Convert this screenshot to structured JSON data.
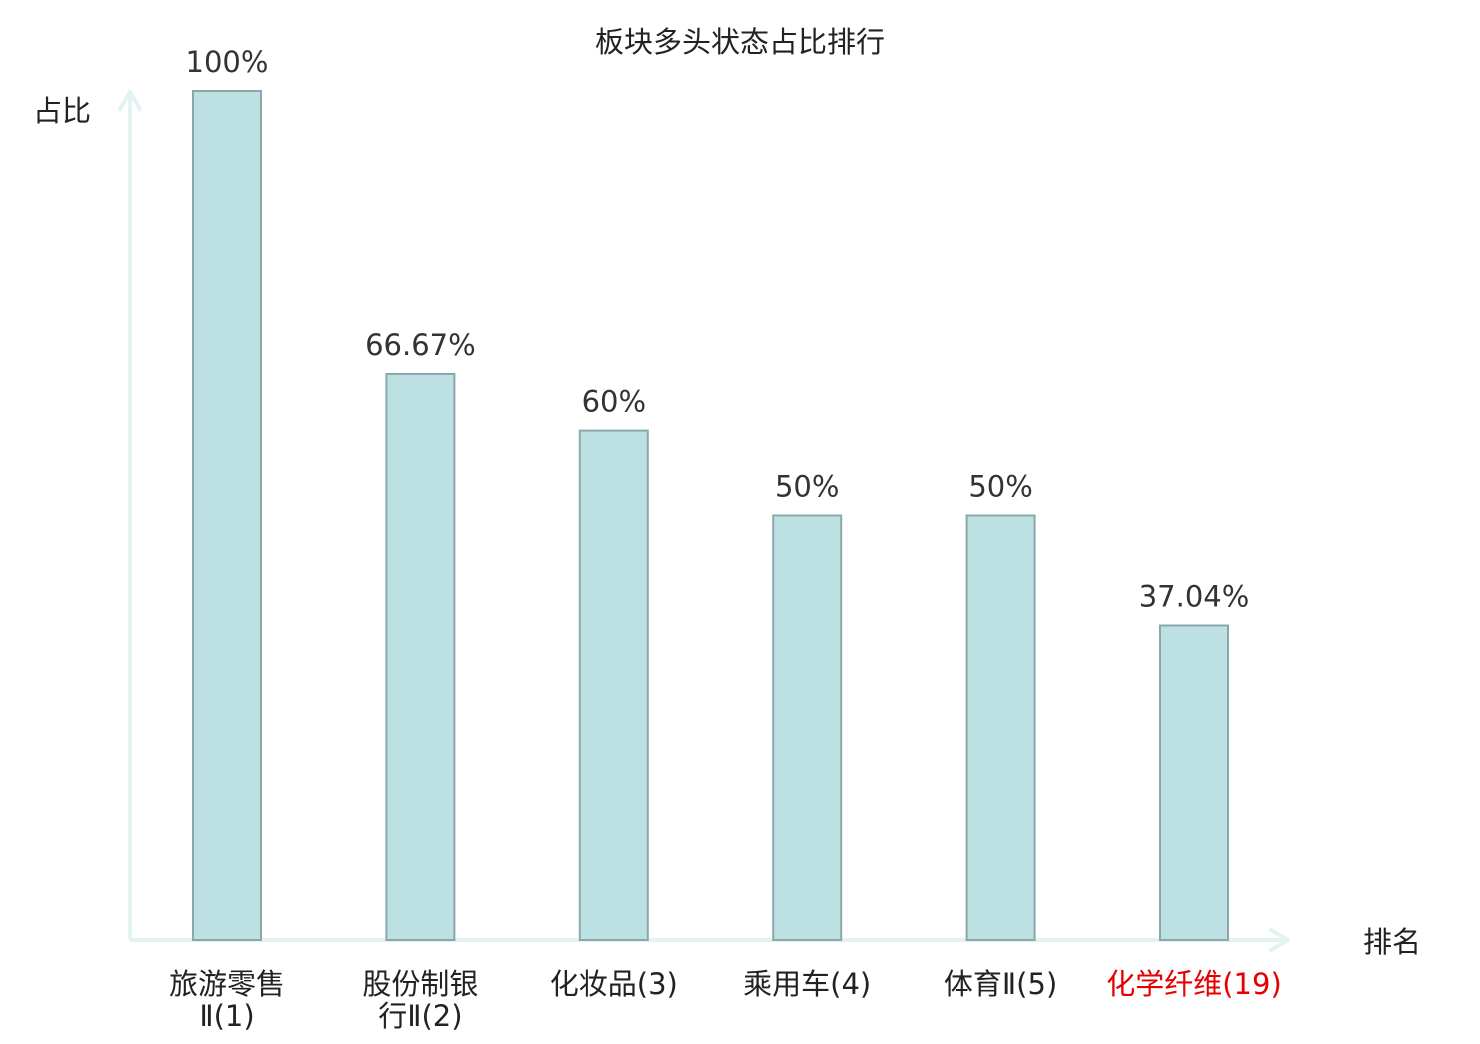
{
  "chart_data": {
    "type": "bar",
    "title": "板块多头状态占比排行",
    "ylabel": "占比",
    "xlabel": "排名",
    "ylim": [
      0,
      100
    ],
    "grid": false,
    "categories": [
      {
        "lines": [
          "旅游零售",
          "Ⅱ(1)"
        ],
        "highlight": false
      },
      {
        "lines": [
          "股份制银",
          "行Ⅱ(2)"
        ],
        "highlight": false
      },
      {
        "lines": [
          "化妆品(3)"
        ],
        "highlight": false
      },
      {
        "lines": [
          "乘用车(4)"
        ],
        "highlight": false
      },
      {
        "lines": [
          "体育Ⅱ(5)"
        ],
        "highlight": false
      },
      {
        "lines": [
          "化学纤维(19)"
        ],
        "highlight": true
      }
    ],
    "values": [
      100,
      66.67,
      60,
      50,
      50,
      37.04
    ],
    "data_labels": [
      "100%",
      "66.67%",
      "60%",
      "50%",
      "50%",
      "37.04%"
    ],
    "colors": {
      "bar_fill": "#bde0e3",
      "bar_stroke": "#8aa8ab",
      "axis": "#e2f3f1",
      "text": "#222222",
      "label_text": "#333333",
      "highlight_text": "#e60000"
    }
  }
}
